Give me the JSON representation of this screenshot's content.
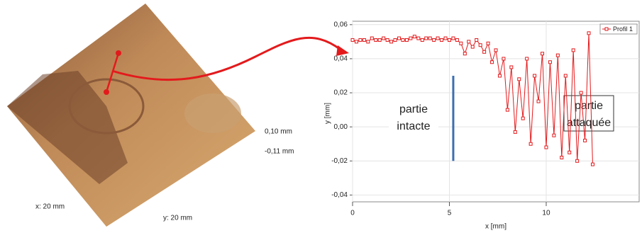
{
  "surface_image": {
    "labels": [
      "0,10 mm",
      "-0,11 mm",
      "x: 20 mm",
      "y: 20 mm"
    ]
  },
  "chart_data": {
    "type": "line",
    "x_label": "x [mm]",
    "y_label": "y [mm]",
    "series": [
      {
        "name": "Profil 1",
        "color": "#e31a1c",
        "x": [
          0,
          0.2,
          0.4,
          0.6,
          0.8,
          1,
          1.2,
          1.4,
          1.6,
          1.8,
          2,
          2.2,
          2.4,
          2.6,
          2.8,
          3,
          3.2,
          3.4,
          3.6,
          3.8,
          4,
          4.2,
          4.4,
          4.6,
          4.8,
          5,
          5.2,
          5.4,
          5.6,
          5.8,
          6,
          6.2,
          6.4,
          6.6,
          6.8,
          7,
          7.2,
          7.4,
          7.6,
          7.8,
          8,
          8.2,
          8.4,
          8.6,
          8.8,
          9,
          9.2,
          9.4,
          9.6,
          9.8,
          10,
          10.2,
          10.4,
          10.6,
          10.8,
          11,
          11.2,
          11.4,
          11.6,
          11.8,
          12,
          12.2,
          12.4
        ],
        "values": [
          0.051,
          0.05,
          0.051,
          0.051,
          0.05,
          0.052,
          0.051,
          0.051,
          0.052,
          0.051,
          0.05,
          0.051,
          0.052,
          0.051,
          0.051,
          0.052,
          0.053,
          0.052,
          0.051,
          0.052,
          0.052,
          0.051,
          0.052,
          0.051,
          0.052,
          0.051,
          0.052,
          0.051,
          0.049,
          0.043,
          0.05,
          0.047,
          0.051,
          0.048,
          0.044,
          0.049,
          0.038,
          0.045,
          0.03,
          0.04,
          0.01,
          0.035,
          -0.003,
          0.028,
          0.005,
          0.04,
          -0.01,
          0.03,
          0.015,
          0.043,
          -0.012,
          0.038,
          -0.005,
          0.042,
          -0.018,
          0.03,
          -0.015,
          0.045,
          -0.02,
          0.02,
          -0.008,
          0.055,
          -0.022
        ]
      }
    ],
    "xlim": [
      0,
      14.8
    ],
    "xticks": [
      0,
      5,
      10
    ],
    "ylim": [
      -0.044,
      0.062
    ],
    "yticks": [
      {
        "value": -0.04,
        "label": "-0,04"
      },
      {
        "value": -0.02,
        "label": "-0,02"
      },
      {
        "value": 0,
        "label": "0,00"
      },
      {
        "value": 0.02,
        "label": "0,02"
      },
      {
        "value": 0.04,
        "label": "0,04"
      },
      {
        "value": 0.06,
        "label": "0,06"
      }
    ],
    "grid": true,
    "legend": "top-right",
    "divider": {
      "x": 5.2,
      "y": [
        0.03,
        -0.02
      ],
      "color": "#3c6fb0"
    },
    "annotations": [
      {
        "lines": [
          "partie",
          "intacte"
        ]
      },
      {
        "lines": [
          "partie",
          "attaquée"
        ]
      }
    ]
  }
}
